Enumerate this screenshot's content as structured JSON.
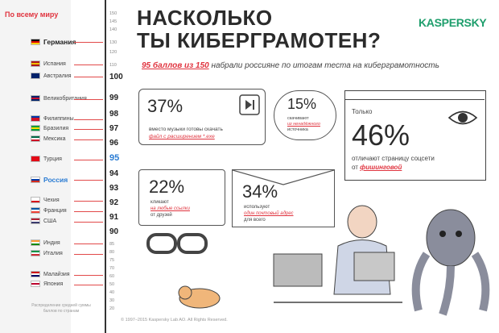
{
  "header": {
    "title_line1": "НАСКОЛЬКО",
    "title_line2": "ТЫ КИБЕРГРАМОТЕН?",
    "logo": "KASPERSKY",
    "subtitle_highlight": "95 баллов из 150",
    "subtitle_rest": "набрали россияне по итогам теста на киберграмотность"
  },
  "sidebar": {
    "world_label": "По всему миру",
    "note": "Распределение средней суммы баллов по странам",
    "countries": [
      {
        "name": "Германия",
        "flag": "de"
      },
      {
        "name": "Испания",
        "flag": "es"
      },
      {
        "name": "Австралия",
        "flag": "au"
      },
      {
        "name": "Великобритания",
        "flag": "gb"
      },
      {
        "name": "Филиппины",
        "flag": "ph"
      },
      {
        "name": "Бразилия",
        "flag": "br"
      },
      {
        "name": "Мексика",
        "flag": "mx"
      },
      {
        "name": "Турция",
        "flag": "tr"
      },
      {
        "name": "Россия",
        "flag": "ru"
      },
      {
        "name": "Чехия",
        "flag": "cz"
      },
      {
        "name": "Франция",
        "flag": "fr"
      },
      {
        "name": "США",
        "flag": "us"
      },
      {
        "name": "Индия",
        "flag": "in"
      },
      {
        "name": "Италия",
        "flag": "it"
      },
      {
        "name": "Малайзия",
        "flag": "my"
      },
      {
        "name": "Япония",
        "flag": "jp"
      }
    ],
    "ticks": [
      "150",
      "145",
      "140",
      "130",
      "120",
      "110",
      "100",
      "99",
      "98",
      "97",
      "96",
      "95",
      "94",
      "93",
      "92",
      "91",
      "90",
      "85",
      "80",
      "75",
      "70",
      "60",
      "50",
      "40",
      "30",
      "20"
    ],
    "flag_colors": {
      "de": [
        "#000000",
        "#dd0000",
        "#ffce00"
      ],
      "es": [
        "#aa151b",
        "#f1bf00",
        "#aa151b"
      ],
      "au": [
        "#012169",
        "#012169",
        "#012169"
      ],
      "gb": [
        "#012169",
        "#c8102e",
        "#012169"
      ],
      "ph": [
        "#0038a8",
        "#ce1126",
        "#ce1126"
      ],
      "br": [
        "#009c3b",
        "#ffdf00",
        "#009c3b"
      ],
      "mx": [
        "#006847",
        "#ffffff",
        "#ce1126"
      ],
      "tr": [
        "#e30a17",
        "#e30a17",
        "#e30a17"
      ],
      "ru": [
        "#ffffff",
        "#0039a6",
        "#d52b1e"
      ],
      "cz": [
        "#ffffff",
        "#ffffff",
        "#d7141a"
      ],
      "fr": [
        "#0055a4",
        "#ffffff",
        "#ef4135"
      ],
      "us": [
        "#b22234",
        "#ffffff",
        "#3c3b6e"
      ],
      "in": [
        "#ff9933",
        "#ffffff",
        "#138808"
      ],
      "it": [
        "#009246",
        "#ffffff",
        "#ce2b37"
      ],
      "my": [
        "#cc0001",
        "#ffffff",
        "#010066"
      ],
      "jp": [
        "#ffffff",
        "#bc002d",
        "#ffffff"
      ]
    }
  },
  "stats": {
    "s37": {
      "value": "37%",
      "line1": "вместо музыки готовы скачать",
      "line2": "файл с расширением *.exe"
    },
    "s15": {
      "value": "15%",
      "line1": "скачивают",
      "line2": "из ненадёжного",
      "line3": "источника"
    },
    "s46": {
      "prefix": "Только",
      "value": "46%",
      "line1": "отличают страницу соцсети",
      "line2_pre": "от",
      "line2_hl": "фишинговой"
    },
    "s22": {
      "value": "22%",
      "line1": "кликают",
      "line2": "на любые ссылки",
      "line3": "от друзей"
    },
    "s34": {
      "value": "34%",
      "line1": "используют",
      "line2": "один почтовый адрес",
      "line3": "для всего"
    }
  },
  "footer": "© 1997–2015 Kaspersky Lab AO. All Rights Reserved."
}
